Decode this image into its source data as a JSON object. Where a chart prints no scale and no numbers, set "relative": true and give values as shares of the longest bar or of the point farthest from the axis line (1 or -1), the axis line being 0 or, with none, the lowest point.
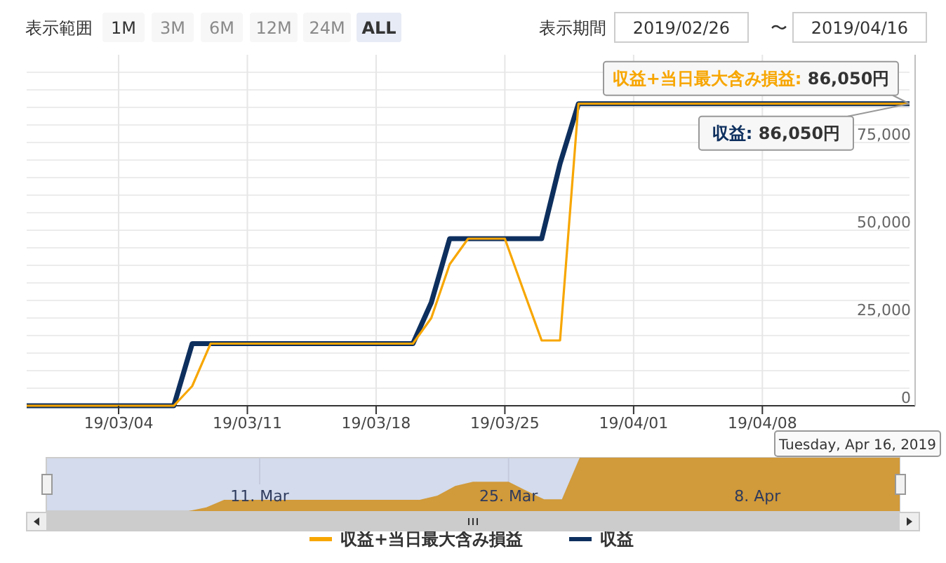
{
  "chart_data": [
    {
      "type": "line",
      "x": [
        "2019-02-27",
        "2019-02-28",
        "2019-03-01",
        "2019-03-02",
        "2019-03-03",
        "2019-03-04",
        "2019-03-05",
        "2019-03-06",
        "2019-03-07",
        "2019-03-08",
        "2019-03-09",
        "2019-03-10",
        "2019-03-11",
        "2019-03-12",
        "2019-03-13",
        "2019-03-14",
        "2019-03-15",
        "2019-03-16",
        "2019-03-17",
        "2019-03-18",
        "2019-03-19",
        "2019-03-20",
        "2019-03-21",
        "2019-03-22",
        "2019-03-23",
        "2019-03-24",
        "2019-03-25",
        "2019-03-26",
        "2019-03-27",
        "2019-03-28",
        "2019-03-29",
        "2019-03-30",
        "2019-03-31",
        "2019-04-01",
        "2019-04-02",
        "2019-04-03",
        "2019-04-04",
        "2019-04-05",
        "2019-04-06",
        "2019-04-07",
        "2019-04-08",
        "2019-04-09",
        "2019-04-10",
        "2019-04-11",
        "2019-04-12",
        "2019-04-13",
        "2019-04-14",
        "2019-04-15",
        "2019-04-16"
      ],
      "series": [
        {
          "name": "収益+当日最大含み損益",
          "color": "#f7a600",
          "values": [
            0,
            0,
            0,
            0,
            0,
            0,
            0,
            0,
            0,
            5600,
            17700,
            17700,
            17700,
            17700,
            17700,
            17700,
            17700,
            17700,
            17700,
            17700,
            17700,
            17700,
            25000,
            40300,
            47600,
            47600,
            47600,
            33000,
            18600,
            18600,
            86050,
            86050,
            86050,
            86050,
            86050,
            86050,
            86050,
            86050,
            86050,
            86050,
            86050,
            86050,
            86050,
            86050,
            86050,
            86050,
            86050,
            86050,
            86050
          ]
        },
        {
          "name": "収益",
          "color": "#0d2f5e",
          "values": [
            0,
            0,
            0,
            0,
            0,
            0,
            0,
            0,
            0,
            17700,
            17700,
            17700,
            17700,
            17700,
            17700,
            17700,
            17700,
            17700,
            17700,
            17700,
            17700,
            17700,
            29400,
            47600,
            47600,
            47600,
            47600,
            47600,
            47600,
            69000,
            86050,
            86050,
            86050,
            86050,
            86050,
            86050,
            86050,
            86050,
            86050,
            86050,
            86050,
            86050,
            86050,
            86050,
            86050,
            86050,
            86050,
            86050,
            86050
          ]
        }
      ],
      "xlim": [
        "2019-02-27",
        "2019-04-16"
      ],
      "xticks": [
        {
          "value": "2019-03-04",
          "label": "19/03/04"
        },
        {
          "value": "2019-03-11",
          "label": "19/03/11"
        },
        {
          "value": "2019-03-18",
          "label": "19/03/18"
        },
        {
          "value": "2019-03-25",
          "label": "19/03/25"
        },
        {
          "value": "2019-04-01",
          "label": "19/04/01"
        },
        {
          "value": "2019-04-08",
          "label": "19/04/08"
        }
      ],
      "ylim": [
        0,
        100000
      ],
      "yticks": [
        0,
        {
          "value": 5000,
          "label": null
        },
        {
          "value": 10000,
          "label": null
        },
        {
          "value": 15000,
          "label": null
        },
        {
          "value": 20000,
          "label": null
        },
        {
          "value": 25000,
          "label": "25,000"
        },
        {
          "value": 30000,
          "label": null
        },
        {
          "value": 35000,
          "label": null
        },
        {
          "value": 40000,
          "label": null
        },
        {
          "value": 45000,
          "label": null
        },
        {
          "value": 50000,
          "label": "50,000"
        },
        {
          "value": 55000,
          "label": null
        },
        {
          "value": 60000,
          "label": null
        },
        {
          "value": 65000,
          "label": null
        },
        {
          "value": 70000,
          "label": null
        },
        {
          "value": 75000,
          "label": "75,000"
        },
        {
          "value": 80000,
          "label": null
        },
        {
          "value": 85000,
          "label": null
        },
        {
          "value": 90000,
          "label": null
        },
        {
          "value": 95000,
          "label": null
        }
      ],
      "grid": true,
      "legend": "bottom",
      "line_style": "solid",
      "marker": "none",
      "annotations": [
        "表示範囲",
        "1M",
        "3M",
        "6M",
        "12M",
        "24M",
        "ALL",
        "表示期間",
        "2019/02/26",
        "〜",
        "2019/04/16",
        {
          "text": "収益+当日最大含み損益: 86,050円",
          "x": "2019-04-16",
          "y": 86050
        },
        {
          "text": "収益: 86,050円",
          "x": "2019-04-16",
          "y": 86050
        },
        "Tuesday, Apr 16, 2019"
      ]
    },
    {
      "type": "area",
      "relative": true,
      "x": [
        "2019-02-27",
        "2019-02-28",
        "2019-03-01",
        "2019-03-02",
        "2019-03-03",
        "2019-03-04",
        "2019-03-05",
        "2019-03-06",
        "2019-03-07",
        "2019-03-08",
        "2019-03-09",
        "2019-03-10",
        "2019-03-11",
        "2019-03-12",
        "2019-03-13",
        "2019-03-14",
        "2019-03-15",
        "2019-03-16",
        "2019-03-17",
        "2019-03-18",
        "2019-03-19",
        "2019-03-20",
        "2019-03-21",
        "2019-03-22",
        "2019-03-23",
        "2019-03-24",
        "2019-03-25",
        "2019-03-26",
        "2019-03-27",
        "2019-03-28",
        "2019-03-29",
        "2019-03-30",
        "2019-03-31",
        "2019-04-01",
        "2019-04-02",
        "2019-04-03",
        "2019-04-04",
        "2019-04-05",
        "2019-04-06",
        "2019-04-07",
        "2019-04-08",
        "2019-04-09",
        "2019-04-10",
        "2019-04-11",
        "2019-04-12",
        "2019-04-13",
        "2019-04-14",
        "2019-04-15",
        "2019-04-16"
      ],
      "values": [
        0,
        0,
        0,
        0,
        0,
        0,
        0,
        0,
        0,
        0.07,
        0.21,
        0.21,
        0.21,
        0.21,
        0.21,
        0.21,
        0.21,
        0.21,
        0.21,
        0.21,
        0.21,
        0.21,
        0.29,
        0.47,
        0.55,
        0.55,
        0.55,
        0.38,
        0.22,
        0.22,
        1,
        1,
        1,
        1,
        1,
        1,
        1,
        1,
        1,
        1,
        1,
        1,
        1,
        1,
        1,
        1,
        1,
        1,
        1
      ],
      "color": "#d19a3a",
      "xlim": [
        "2019-02-27",
        "2019-04-16"
      ],
      "xticks": [
        {
          "value": "2019-03-11",
          "label": "11. Mar"
        },
        {
          "value": "2019-03-25",
          "label": "25. Mar"
        },
        {
          "value": "2019-04-08",
          "label": "8. Apr"
        }
      ],
      "grid": "x",
      "tick_labels": "x"
    }
  ]
}
